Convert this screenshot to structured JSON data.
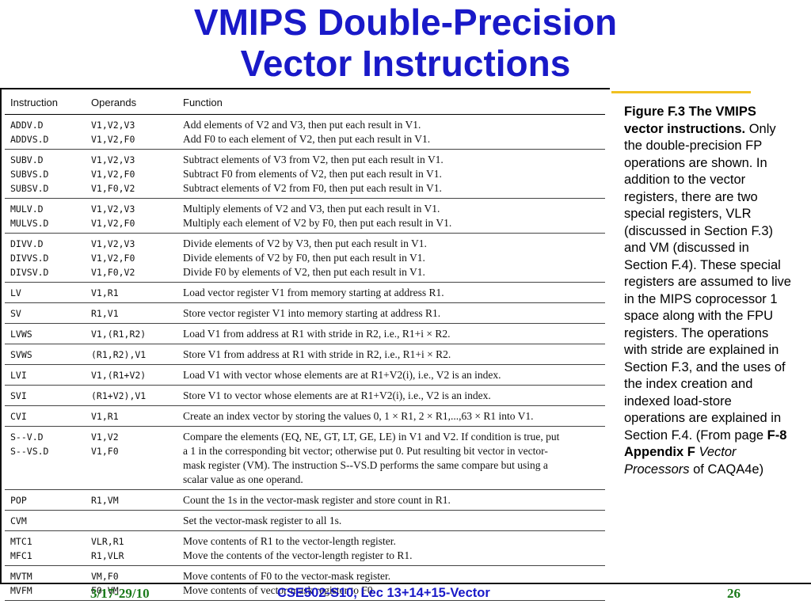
{
  "title": {
    "line1": "VMIPS Double-Precision",
    "line2": "Vector Instructions"
  },
  "table": {
    "headers": [
      "Instruction",
      "Operands",
      "Function"
    ],
    "groups": [
      [
        {
          "instr": "ADDV.D",
          "ops": "V1,V2,V3",
          "fn": [
            "Add elements of V2 and V3, then put each result in V1."
          ]
        },
        {
          "instr": "ADDVS.D",
          "ops": "V1,V2,F0",
          "fn": [
            "Add F0 to each element of V2, then put each result in V1."
          ]
        }
      ],
      [
        {
          "instr": "SUBV.D",
          "ops": "V1,V2,V3",
          "fn": [
            "Subtract elements of V3 from V2, then put each result in V1."
          ]
        },
        {
          "instr": "SUBVS.D",
          "ops": "V1,V2,F0",
          "fn": [
            "Subtract F0 from elements of V2, then put each result in V1."
          ]
        },
        {
          "instr": "SUBSV.D",
          "ops": "V1,F0,V2",
          "fn": [
            "Subtract elements of V2 from F0, then put each result in V1."
          ]
        }
      ],
      [
        {
          "instr": "MULV.D",
          "ops": "V1,V2,V3",
          "fn": [
            "Multiply elements of V2 and V3, then put each result in V1."
          ]
        },
        {
          "instr": "MULVS.D",
          "ops": "V1,V2,F0",
          "fn": [
            "Multiply each element of V2  by F0, then put each result in V1."
          ]
        }
      ],
      [
        {
          "instr": "DIVV.D",
          "ops": "V1,V2,V3",
          "fn": [
            "Divide elements of V2 by V3, then put each result in V1."
          ]
        },
        {
          "instr": "DIVVS.D",
          "ops": "V1,V2,F0",
          "fn": [
            "Divide elements of V2 by F0, then put each result in V1."
          ]
        },
        {
          "instr": "DIVSV.D",
          "ops": "V1,F0,V2",
          "fn": [
            "Divide F0 by elements of V2, then put each result in V1."
          ]
        }
      ],
      [
        {
          "instr": "LV",
          "ops": "V1,R1",
          "fn": [
            "Load vector register V1 from memory starting at address R1."
          ]
        }
      ],
      [
        {
          "instr": "SV",
          "ops": "R1,V1",
          "fn": [
            "Store vector register V1 into memory starting at address R1."
          ]
        }
      ],
      [
        {
          "instr": "LVWS",
          "ops": "V1,(R1,R2)",
          "fn": [
            "Load V1 from address at R1 with stride in R2, i.e., R1+i × R2."
          ]
        }
      ],
      [
        {
          "instr": "SVWS",
          "ops": "(R1,R2),V1",
          "fn": [
            "Store V1 from address at R1 with stride in R2, i.e., R1+i × R2."
          ]
        }
      ],
      [
        {
          "instr": "LVI",
          "ops": "V1,(R1+V2)",
          "fn": [
            "Load V1 with vector whose elements are at R1+V2(i), i.e., V2 is an index."
          ]
        }
      ],
      [
        {
          "instr": "SVI",
          "ops": "(R1+V2),V1",
          "fn": [
            "Store V1 to vector whose elements are at R1+V2(i), i.e., V2 is an index."
          ]
        }
      ],
      [
        {
          "instr": "CVI",
          "ops": "V1,R1",
          "fn": [
            "Create an index vector by storing the values 0, 1 × R1, 2 × R1,...,63 × R1 into V1."
          ]
        }
      ],
      [
        {
          "instr": "S--V.D",
          "ops": "V1,V2",
          "fn": [
            "Compare the elements (EQ, NE, GT, LT, GE, LE) in V1 and V2. If condition is true, put",
            "a 1 in the corresponding bit vector; otherwise put 0. Put resulting bit vector in vector-",
            "mask register (VM). The instruction S--VS.D performs the same compare but using a",
            "scalar value as one operand."
          ]
        },
        {
          "instr": "S--VS.D",
          "ops": "V1,F0",
          "fn": []
        }
      ],
      [
        {
          "instr": "POP",
          "ops": "R1,VM",
          "fn": [
            "Count the 1s in the vector-mask register and store count in R1."
          ]
        }
      ],
      [
        {
          "instr": "CVM",
          "ops": "",
          "fn": [
            "Set the vector-mask register to all 1s."
          ]
        }
      ],
      [
        {
          "instr": "MTC1",
          "ops": "VLR,R1",
          "fn": [
            "Move contents of R1 to the vector-length register."
          ]
        },
        {
          "instr": "MFC1",
          "ops": "R1,VLR",
          "fn": [
            "Move the contents of the vector-length register to R1."
          ]
        }
      ],
      [
        {
          "instr": "MVTM",
          "ops": "VM,F0",
          "fn": [
            "Move contents of F0 to the vector-mask register."
          ]
        },
        {
          "instr": "MVFM",
          "ops": "F0,VM",
          "fn": [
            "Move contents of vector-mask register to F0."
          ]
        }
      ]
    ]
  },
  "caption": {
    "bold": "Figure F.3 The VMIPS vector instructions.",
    "body": " Only the double-precision FP operations are shown. In addition to the vector registers, there are two special registers, VLR (discussed in Section F.3) and VM (discussed in Section F.4). These special registers are assumed to live in the MIPS coprocessor 1 space along with the FPU registers. The operations with stride are explained in Section F.3, and the uses of the index creation and indexed load-store operations are explained in Section F.4.   (From page ",
    "ref_bold": "F-8 Appendix F",
    "ref_italic": "Vector Processors",
    "tail": " of CAQA4e)"
  },
  "footer": {
    "date": "3/17-29/10",
    "course": "CSE502-S10, Lec 13+14+15-Vector",
    "page": "26"
  },
  "colors": {
    "title": "#1919c8",
    "footer_green": "#1a7a1a",
    "gold_rule": "#f0c020"
  }
}
